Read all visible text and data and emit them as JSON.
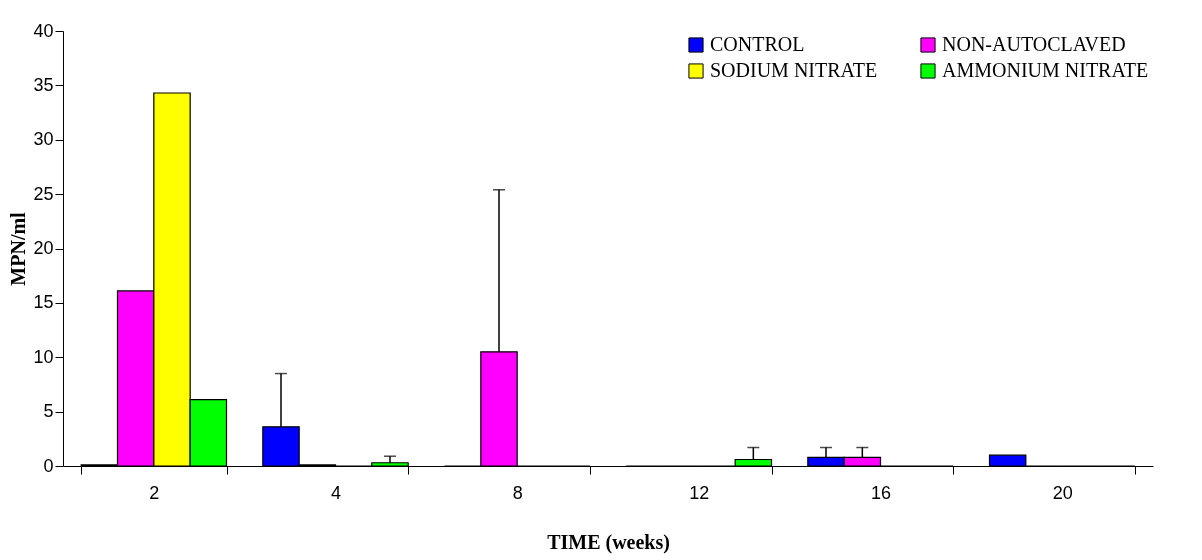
{
  "chart_data": {
    "type": "bar",
    "xlabel": "TIME (weeks)",
    "ylabel": "MPN/ml",
    "categories": [
      "2",
      "4",
      "8",
      "12",
      "16",
      "20"
    ],
    "ylim": [
      0,
      40
    ],
    "yticks": [
      0,
      5,
      10,
      15,
      20,
      25,
      30,
      35,
      40
    ],
    "legend": "top right",
    "grid": false,
    "series": [
      {
        "name": "CONTROL",
        "color": "#0000ff",
        "values": [
          0.1,
          3.6,
          0,
          0,
          0.8,
          1.0
        ],
        "errors": [
          null,
          [
            3.6,
            8.5
          ],
          null,
          null,
          [
            0.8,
            1.7
          ],
          null
        ]
      },
      {
        "name": "NON-AUTOCLAVED",
        "color": "#ff00ff",
        "values": [
          16.1,
          0.1,
          10.5,
          0,
          0.8,
          0
        ],
        "errors": [
          null,
          null,
          [
            10.5,
            25.4
          ],
          null,
          [
            0.8,
            1.7
          ],
          null
        ]
      },
      {
        "name": "SODIUM NITRATE",
        "color": "#ffff00",
        "values": [
          34.3,
          0,
          0,
          0,
          0,
          0
        ]
      },
      {
        "name": "AMMONIUM NITRATE",
        "color": "#00ff00",
        "values": [
          6.1,
          0.3,
          0,
          0.6,
          0,
          0
        ],
        "errors": [
          null,
          [
            0.3,
            0.9
          ],
          null,
          [
            0.6,
            1.7
          ],
          null,
          null
        ]
      }
    ]
  }
}
